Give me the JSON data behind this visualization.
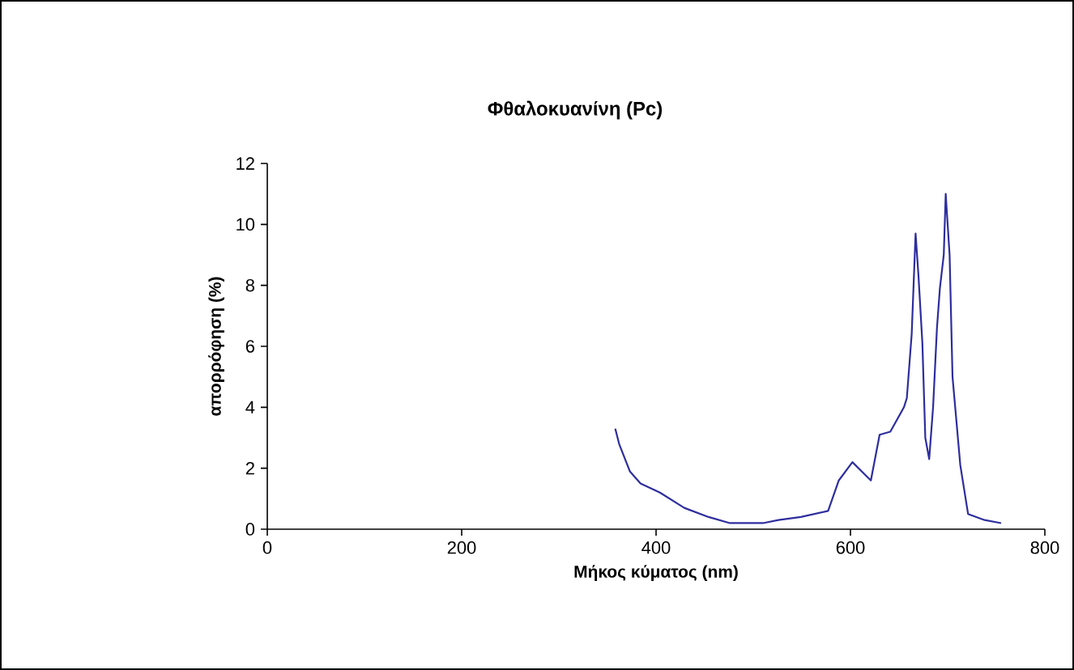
{
  "chart_data": {
    "type": "line",
    "title": "Φθαλοκυανίνη (Pc)",
    "xlabel": "Μήκος κύματος (nm)",
    "ylabel": "απορρόφηση (%)",
    "x": [
      358,
      362,
      373,
      384,
      404,
      429,
      454,
      476,
      493,
      510,
      526,
      549,
      577,
      588,
      602,
      621,
      630,
      641,
      655,
      658,
      663,
      667,
      670,
      674,
      677,
      681,
      685,
      689,
      692,
      696,
      698,
      702,
      705,
      713,
      721,
      738,
      755
    ],
    "values": [
      3.3,
      2.8,
      1.9,
      1.5,
      1.2,
      0.7,
      0.4,
      0.2,
      0.2,
      0.2,
      0.3,
      0.4,
      0.6,
      1.6,
      2.2,
      1.6,
      3.1,
      3.2,
      4.0,
      4.3,
      6.4,
      9.7,
      8.3,
      6.1,
      3.0,
      2.3,
      4.0,
      6.6,
      7.9,
      9.0,
      11.0,
      9.0,
      5.0,
      2.1,
      0.5,
      0.3,
      0.2
    ],
    "color": "#2e2e9e",
    "line_style": "solid",
    "xlim": [
      0,
      800
    ],
    "ylim": [
      0,
      12
    ],
    "xticks": [
      0,
      200,
      400,
      600,
      800
    ],
    "yticks": [
      0,
      2,
      4,
      6,
      8,
      10,
      12
    ]
  }
}
